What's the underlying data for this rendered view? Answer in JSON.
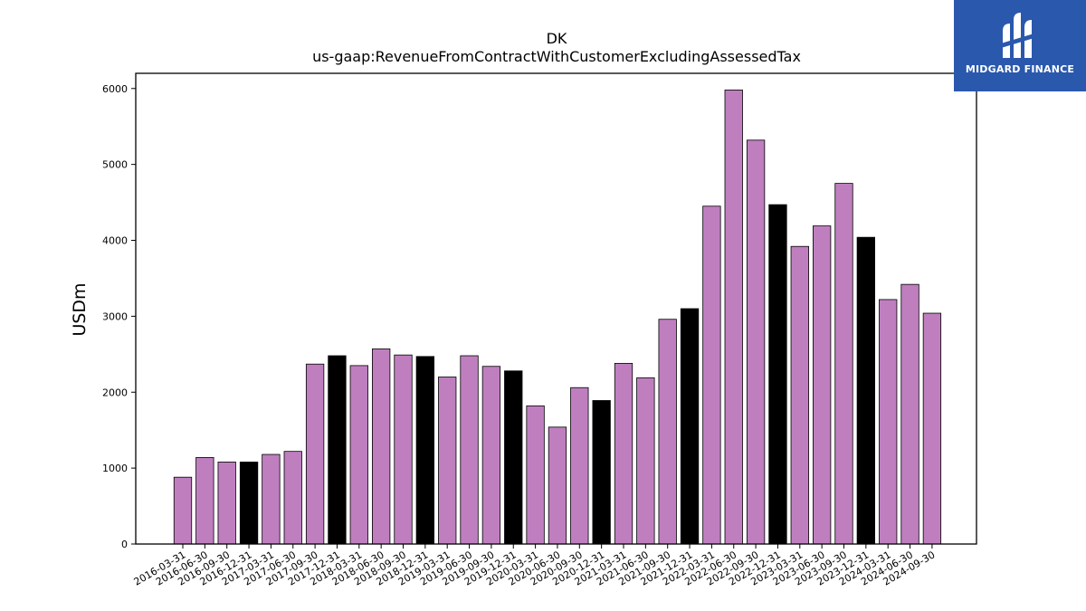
{
  "logo": {
    "brand": "MIDGARD FINANCE",
    "icon": "midgard-mark-icon"
  },
  "colors": {
    "bar": "#bf7fbf",
    "q4bar": "#000000",
    "logo_bg": "#2a58ad"
  },
  "chart_data": {
    "type": "bar",
    "title": "DK",
    "subtitle": "us-gaap:RevenueFromContractWithCustomerExcludingAssessedTax",
    "ylabel": "USDm",
    "xlabel": "",
    "ylim": [
      0,
      6200
    ],
    "yticks": [
      0,
      1000,
      2000,
      3000,
      4000,
      5000,
      6000
    ],
    "grid": false,
    "categories": [
      "2016-03-31",
      "2016-06-30",
      "2016-09-30",
      "2016-12-31",
      "2017-03-31",
      "2017-06-30",
      "2017-09-30",
      "2017-12-31",
      "2018-03-31",
      "2018-06-30",
      "2018-09-30",
      "2018-12-31",
      "2019-03-31",
      "2019-06-30",
      "2019-09-30",
      "2019-12-31",
      "2020-03-31",
      "2020-06-30",
      "2020-09-30",
      "2020-12-31",
      "2021-03-31",
      "2021-06-30",
      "2021-09-30",
      "2021-12-31",
      "2022-03-31",
      "2022-06-30",
      "2022-09-30",
      "2022-12-31",
      "2023-03-31",
      "2023-06-30",
      "2023-09-30",
      "2023-12-31",
      "2024-03-31",
      "2024-06-30",
      "2024-09-30"
    ],
    "values": [
      880,
      1140,
      1080,
      1080,
      1180,
      1220,
      2370,
      2480,
      2350,
      2570,
      2490,
      2470,
      2200,
      2480,
      2340,
      2280,
      1820,
      1540,
      2060,
      1890,
      2380,
      2190,
      2960,
      3100,
      4450,
      5980,
      5320,
      4470,
      3920,
      4190,
      4750,
      4040,
      3220,
      3420,
      3040
    ],
    "highlight_black": [
      false,
      false,
      false,
      true,
      false,
      false,
      false,
      true,
      false,
      false,
      false,
      true,
      false,
      false,
      false,
      true,
      false,
      false,
      false,
      true,
      false,
      false,
      false,
      true,
      false,
      false,
      false,
      true,
      false,
      false,
      false,
      true,
      false,
      false,
      false
    ]
  }
}
